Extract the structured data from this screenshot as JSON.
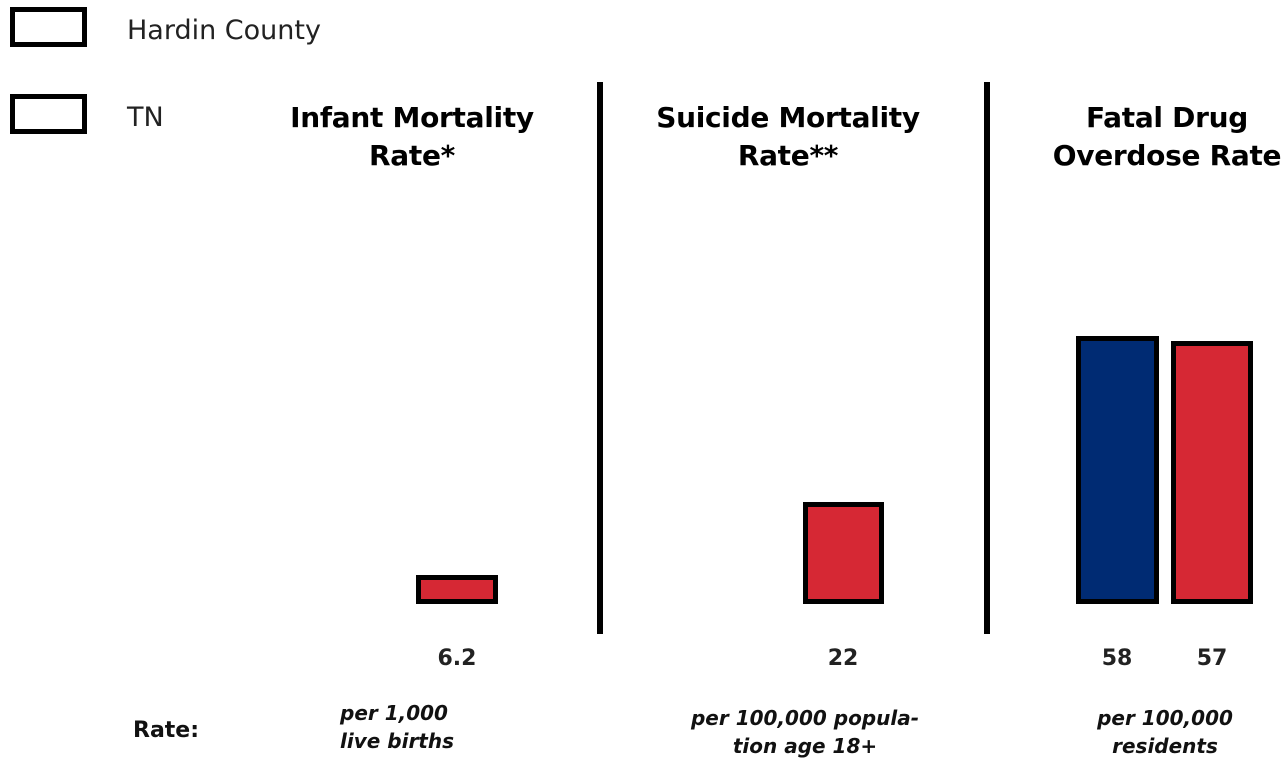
{
  "legend": [
    {
      "label": "Hardin County",
      "color": "#002b73"
    },
    {
      "label": "TN",
      "color": "#d62834"
    }
  ],
  "rate_label": "Rate:",
  "panels": [
    {
      "title_line1": "Infant Mortality",
      "title_line2": "Rate*",
      "unit_line1": "per 1,000",
      "unit_line2": "live births"
    },
    {
      "title_line1": "Suicide Mortality",
      "title_line2": "Rate**",
      "unit_line1": "per 100,000 popula-",
      "unit_line2": "tion age 18+"
    },
    {
      "title_line1": "Fatal Drug",
      "title_line2": "Overdose Rate",
      "unit_line1": "per 100,000",
      "unit_line2": "residents"
    }
  ],
  "chart_data": [
    {
      "type": "bar",
      "title": "Infant Mortality Rate*",
      "unit": "per 1,000 live births",
      "series": [
        {
          "name": "TN",
          "values": [
            6.2
          ]
        }
      ],
      "data_labels": [
        "6.2"
      ]
    },
    {
      "type": "bar",
      "title": "Suicide Mortality Rate**",
      "unit": "per 100,000 population age 18+",
      "series": [
        {
          "name": "TN",
          "values": [
            22
          ]
        }
      ],
      "data_labels": [
        "22"
      ]
    },
    {
      "type": "bar",
      "title": "Fatal Drug Overdose Rate",
      "unit": "per 100,000 residents",
      "series": [
        {
          "name": "Hardin County",
          "values": [
            58
          ]
        },
        {
          "name": "TN",
          "values": [
            57
          ]
        }
      ],
      "data_labels": [
        "58",
        "57"
      ]
    }
  ]
}
